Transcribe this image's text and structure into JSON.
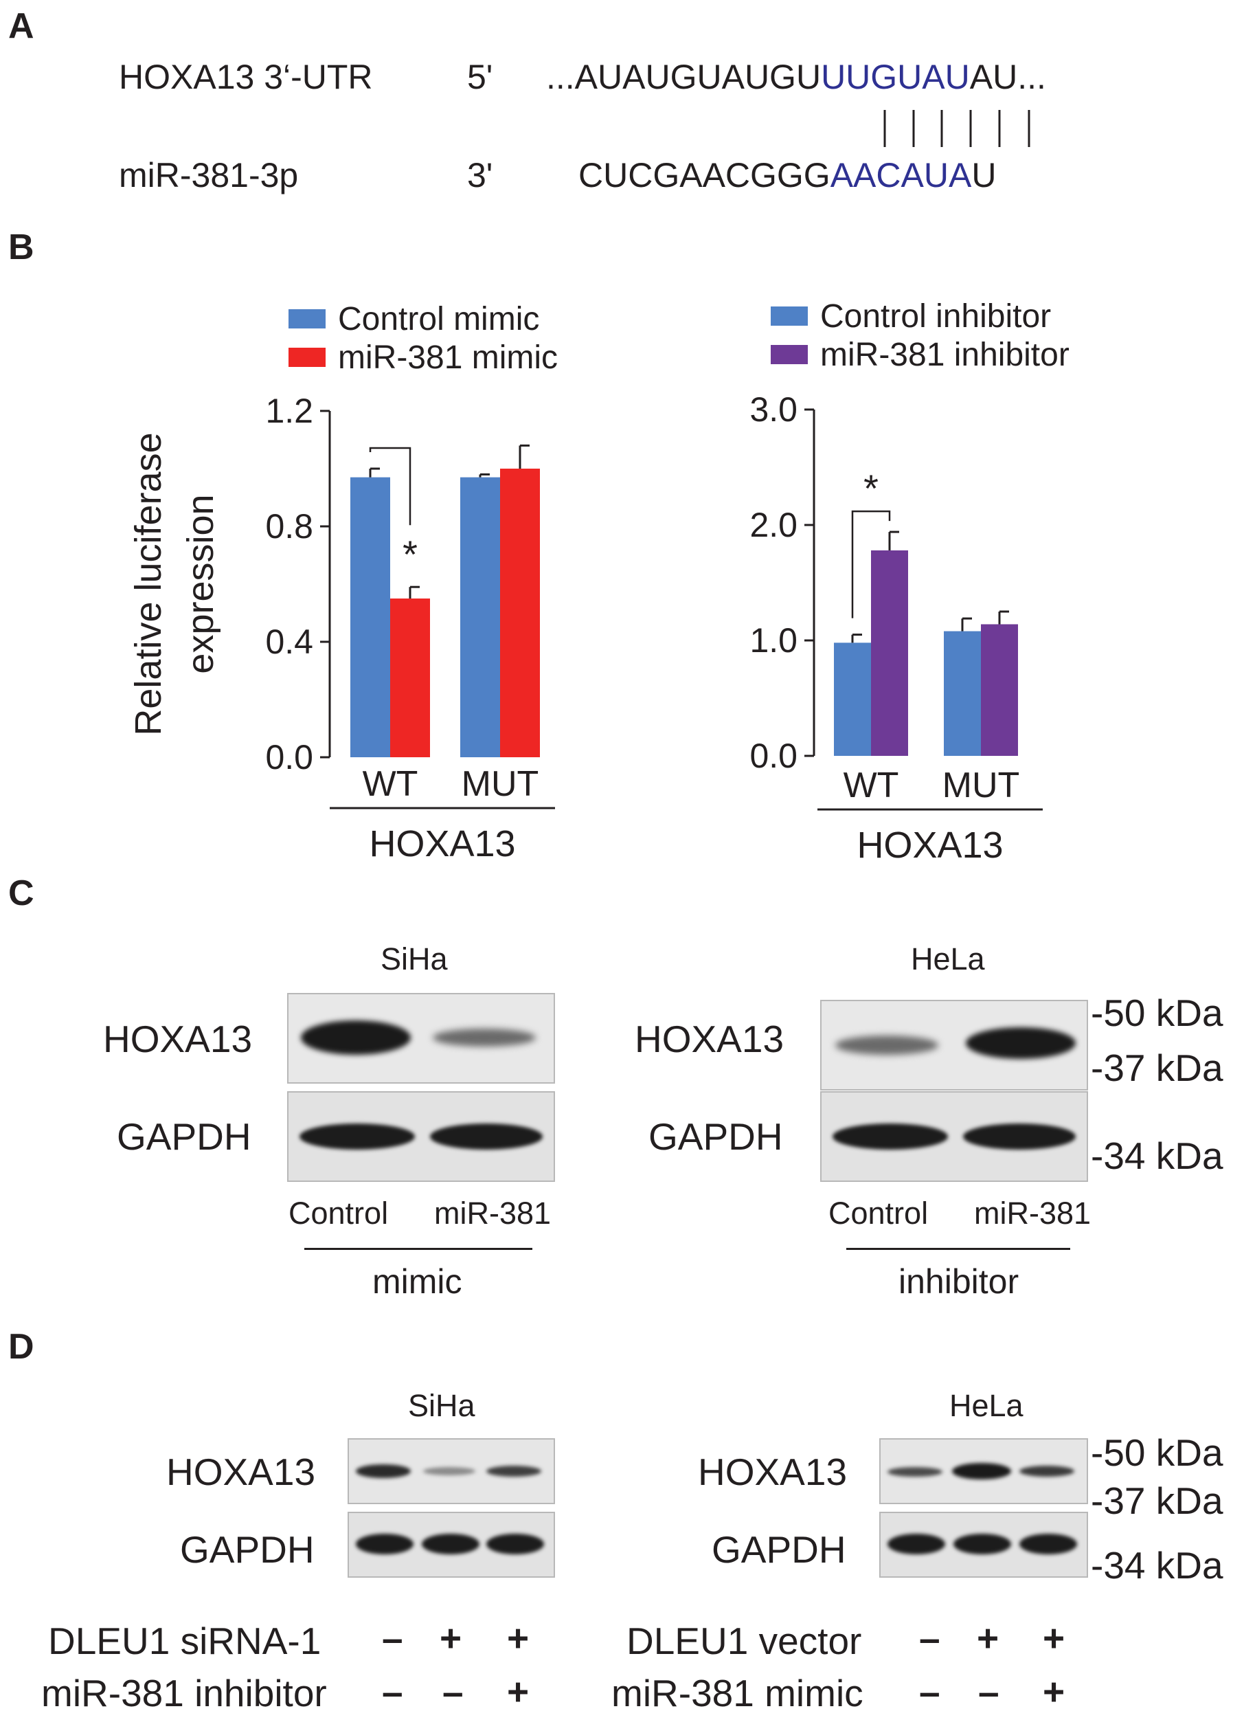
{
  "panels": {
    "A": "A",
    "B": "B",
    "C": "C",
    "D": "D"
  },
  "panel_a": {
    "row1_label": "HOXA13 3‘-UTR",
    "row1_end": "5'",
    "row1_seq_prefix": "...AUAUGUAUGU",
    "row1_seq_match": "UUGUAU",
    "row1_seq_suffix": "AU...",
    "row2_label": "miR-381-3p",
    "row2_end": "3'",
    "row2_seq_prefix": "CUCGAACGGG",
    "row2_seq_match": "AACAUA",
    "row2_seq_suffix": "U",
    "pairing_marks": 6,
    "match_color": "#2e3192"
  },
  "chart_data": [
    {
      "type": "bar",
      "ylabel_line1": "Relative luciferase",
      "ylabel_line2": "expression",
      "ylim": [
        0,
        1.2
      ],
      "yticks": [
        "0.0",
        "0.4",
        "0.8",
        "1.2"
      ],
      "categories": [
        "WT",
        "MUT"
      ],
      "group_label": "HOXA13",
      "series": [
        {
          "name": "Control mimic",
          "values": [
            0.97,
            0.97
          ],
          "errors": [
            0.03,
            0.01
          ],
          "color": "#4f81c6"
        },
        {
          "name": "miR-381 mimic",
          "values": [
            0.55,
            1.0
          ],
          "errors": [
            0.04,
            0.08
          ],
          "color": "#ee2624"
        }
      ],
      "significance": [
        {
          "category": "WT",
          "label": "*"
        }
      ],
      "legend": "top"
    },
    {
      "type": "bar",
      "ylim": [
        0,
        3.0
      ],
      "yticks": [
        "0.0",
        "1.0",
        "2.0",
        "3.0"
      ],
      "categories": [
        "WT",
        "MUT"
      ],
      "group_label": "HOXA13",
      "series": [
        {
          "name": "Control inhibitor",
          "values": [
            0.98,
            1.08
          ],
          "errors": [
            0.07,
            0.11
          ],
          "color": "#4f81c6"
        },
        {
          "name": "miR-381 inhibitor",
          "values": [
            1.78,
            1.14
          ],
          "errors": [
            0.16,
            0.11
          ],
          "color": "#6e3a96"
        }
      ],
      "significance": [
        {
          "category": "WT",
          "label": "*"
        }
      ],
      "legend": "top"
    }
  ],
  "panel_c": {
    "left": {
      "cell_line": "SiHa",
      "row1": "HOXA13",
      "row2": "GAPDH",
      "lane1": "Control",
      "lane2": "miR-381",
      "group": "mimic"
    },
    "right": {
      "cell_line": "HeLa",
      "row1": "HOXA13",
      "row2": "GAPDH",
      "lane1": "Control",
      "lane2": "miR-381",
      "group": "inhibitor"
    },
    "markers": [
      "-50 kDa",
      "-37 kDa",
      "-34 kDa"
    ]
  },
  "panel_d": {
    "left": {
      "cell_line": "SiHa",
      "row1": "HOXA13",
      "row2": "GAPDH",
      "cond1_label": "DLEU1 siRNA-1",
      "cond1_signs": [
        "–",
        "+",
        "+"
      ],
      "cond2_label": "miR-381 inhibitor",
      "cond2_signs": [
        "–",
        "–",
        "+"
      ]
    },
    "right": {
      "cell_line": "HeLa",
      "row1": "HOXA13",
      "row2": "GAPDH",
      "cond1_label": "DLEU1 vector",
      "cond1_signs": [
        "–",
        "+",
        "+"
      ],
      "cond2_label": "miR-381 mimic",
      "cond2_signs": [
        "–",
        "–",
        "+"
      ]
    },
    "markers": [
      "-50 kDa",
      "-37 kDa",
      "-34 kDa"
    ]
  }
}
